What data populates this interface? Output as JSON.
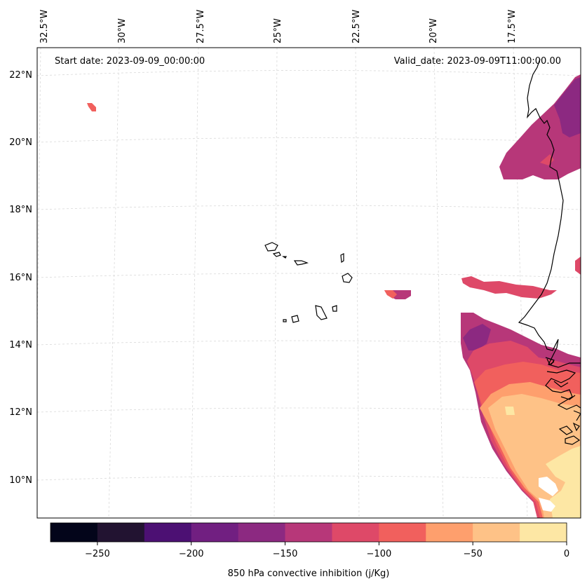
{
  "map": {
    "start_date_label": "Start date: 2023-09-09_00:00:00",
    "valid_date_label": "Valid_date: 2023-09-09T11:00:00.00",
    "lon_labels": [
      "32.5°W",
      "30°W",
      "27.5°W",
      "25°W",
      "22.5°W",
      "20°W",
      "17.5°W"
    ],
    "lat_labels": [
      "22°N",
      "20°N",
      "18°N",
      "16°N",
      "14°N",
      "12°N",
      "10°N"
    ],
    "variable": "850 hPa convective inhibition",
    "units": "j/Kg"
  },
  "colorbar": {
    "label": "850 hPa convective inhibition (j/Kg)",
    "ticks": [
      "−250",
      "−200",
      "−150",
      "−100",
      "−50",
      "0"
    ],
    "levels": [
      -275,
      -250,
      -225,
      -200,
      -175,
      -150,
      -125,
      -100,
      -75,
      -50,
      -25,
      0
    ],
    "colors": [
      "#03051a",
      "#221331",
      "#4c1073",
      "#711f81",
      "#8c2981",
      "#b73779",
      "#de4968",
      "#f1605d",
      "#fe9f6d",
      "#fec287",
      "#fde7a4"
    ]
  }
}
